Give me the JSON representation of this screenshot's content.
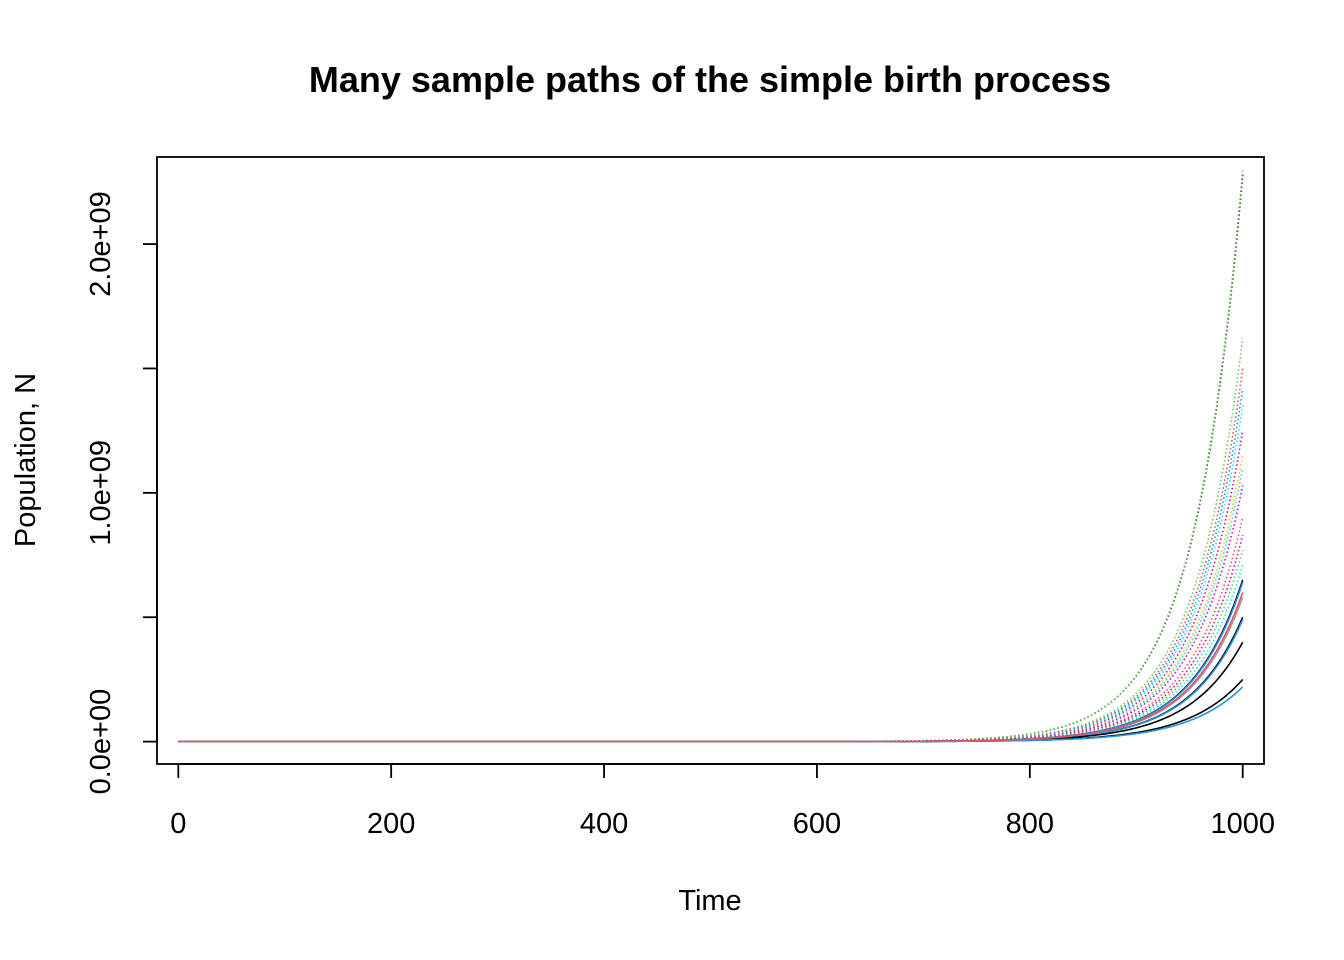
{
  "chart_data": {
    "type": "line",
    "title": "Many sample paths of the simple birth process",
    "xlabel": "Time",
    "ylabel": "Population, N",
    "xlim": [
      -20,
      1020
    ],
    "ylim": [
      -90000000,
      2350000000
    ],
    "x_ticks": [
      0,
      200,
      400,
      600,
      800,
      1000
    ],
    "x_tick_labels": [
      "0",
      "200",
      "400",
      "600",
      "800",
      "1000"
    ],
    "y_ticks": [
      0,
      500000000,
      1000000000,
      1500000000,
      2000000000
    ],
    "y_tick_labels": [
      "0.0e+00",
      "",
      "1.0e+09",
      "",
      "2.0e+09"
    ],
    "grid": false,
    "legend": "none",
    "x_start": 0,
    "x_end": 1000,
    "series": [
      {
        "color": "#000000",
        "final": 2280000000,
        "style": "dotted"
      },
      {
        "color": "#61D04F",
        "final": 2300000000,
        "style": "dotted"
      },
      {
        "color": "#61D04F",
        "final": 1620000000,
        "style": "dotted"
      },
      {
        "color": "#DF536B",
        "final": 1500000000,
        "style": "dotted"
      },
      {
        "color": "#2297E6",
        "final": 1420000000,
        "style": "dotted"
      },
      {
        "color": "#28E2E5",
        "final": 1350000000,
        "style": "dotted"
      },
      {
        "color": "#CD0BBC",
        "final": 1250000000,
        "style": "dotted"
      },
      {
        "color": "#F5C710",
        "final": 1150000000,
        "style": "dotted"
      },
      {
        "color": "#28E2E5",
        "final": 1100000000,
        "style": "dotted"
      },
      {
        "color": "#CD0BBC",
        "final": 1030000000,
        "style": "dotted"
      },
      {
        "color": "#DF536B",
        "final": 900000000,
        "style": "dotted"
      },
      {
        "color": "#CD0BBC",
        "final": 830000000,
        "style": "dotted"
      },
      {
        "color": "#61D04F",
        "final": 770000000,
        "style": "dotted"
      },
      {
        "color": "#28E2E5",
        "final": 710000000,
        "style": "dotted"
      },
      {
        "color": "#000000",
        "final": 650000000,
        "style": "solid"
      },
      {
        "color": "#2297E6",
        "final": 640000000,
        "style": "solid"
      },
      {
        "color": "#000000",
        "final": 500000000,
        "style": "solid"
      },
      {
        "color": "#2297E6",
        "final": 490000000,
        "style": "solid"
      },
      {
        "color": "#000000",
        "final": 400000000,
        "style": "solid"
      },
      {
        "color": "#000000",
        "final": 250000000,
        "style": "solid"
      },
      {
        "color": "#2297E6",
        "final": 220000000,
        "style": "solid"
      },
      {
        "color": "#9E9E9E",
        "final": 580000000,
        "style": "solid"
      },
      {
        "color": "#DF536B",
        "final": 600000000,
        "style": "solid"
      }
    ]
  }
}
